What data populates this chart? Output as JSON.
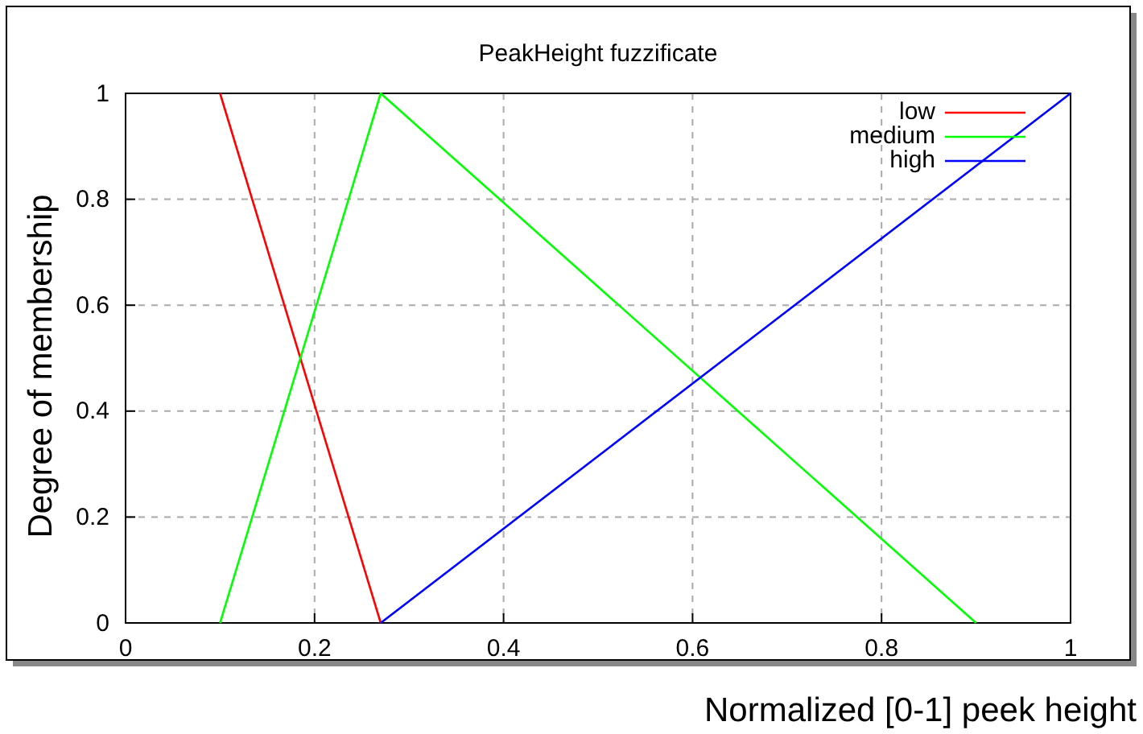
{
  "chart_data": {
    "type": "line",
    "title": "PeakHeight fuzzificate",
    "xlabel": "Normalized [0-1] peek height",
    "ylabel": "Degree of membership",
    "series": [
      {
        "name": "low",
        "color": "#ff0000",
        "x": [
          0.1,
          0.27
        ],
        "values": [
          1,
          0
        ]
      },
      {
        "name": "medium",
        "color": "#00ff00",
        "x": [
          0.1,
          0.27,
          0.9
        ],
        "values": [
          0,
          1,
          0
        ]
      },
      {
        "name": "high",
        "color": "#0000ff",
        "x": [
          0.27,
          1
        ],
        "values": [
          0,
          1
        ]
      }
    ],
    "xlim": [
      0,
      1
    ],
    "ylim": [
      0,
      1
    ],
    "xticks": [
      0,
      0.2,
      0.4,
      0.6,
      0.8,
      1
    ],
    "yticks": [
      0,
      0.2,
      0.4,
      0.6,
      0.8,
      1
    ],
    "grid": true,
    "legend": "top right",
    "marker": "none",
    "line_style": "solid"
  }
}
